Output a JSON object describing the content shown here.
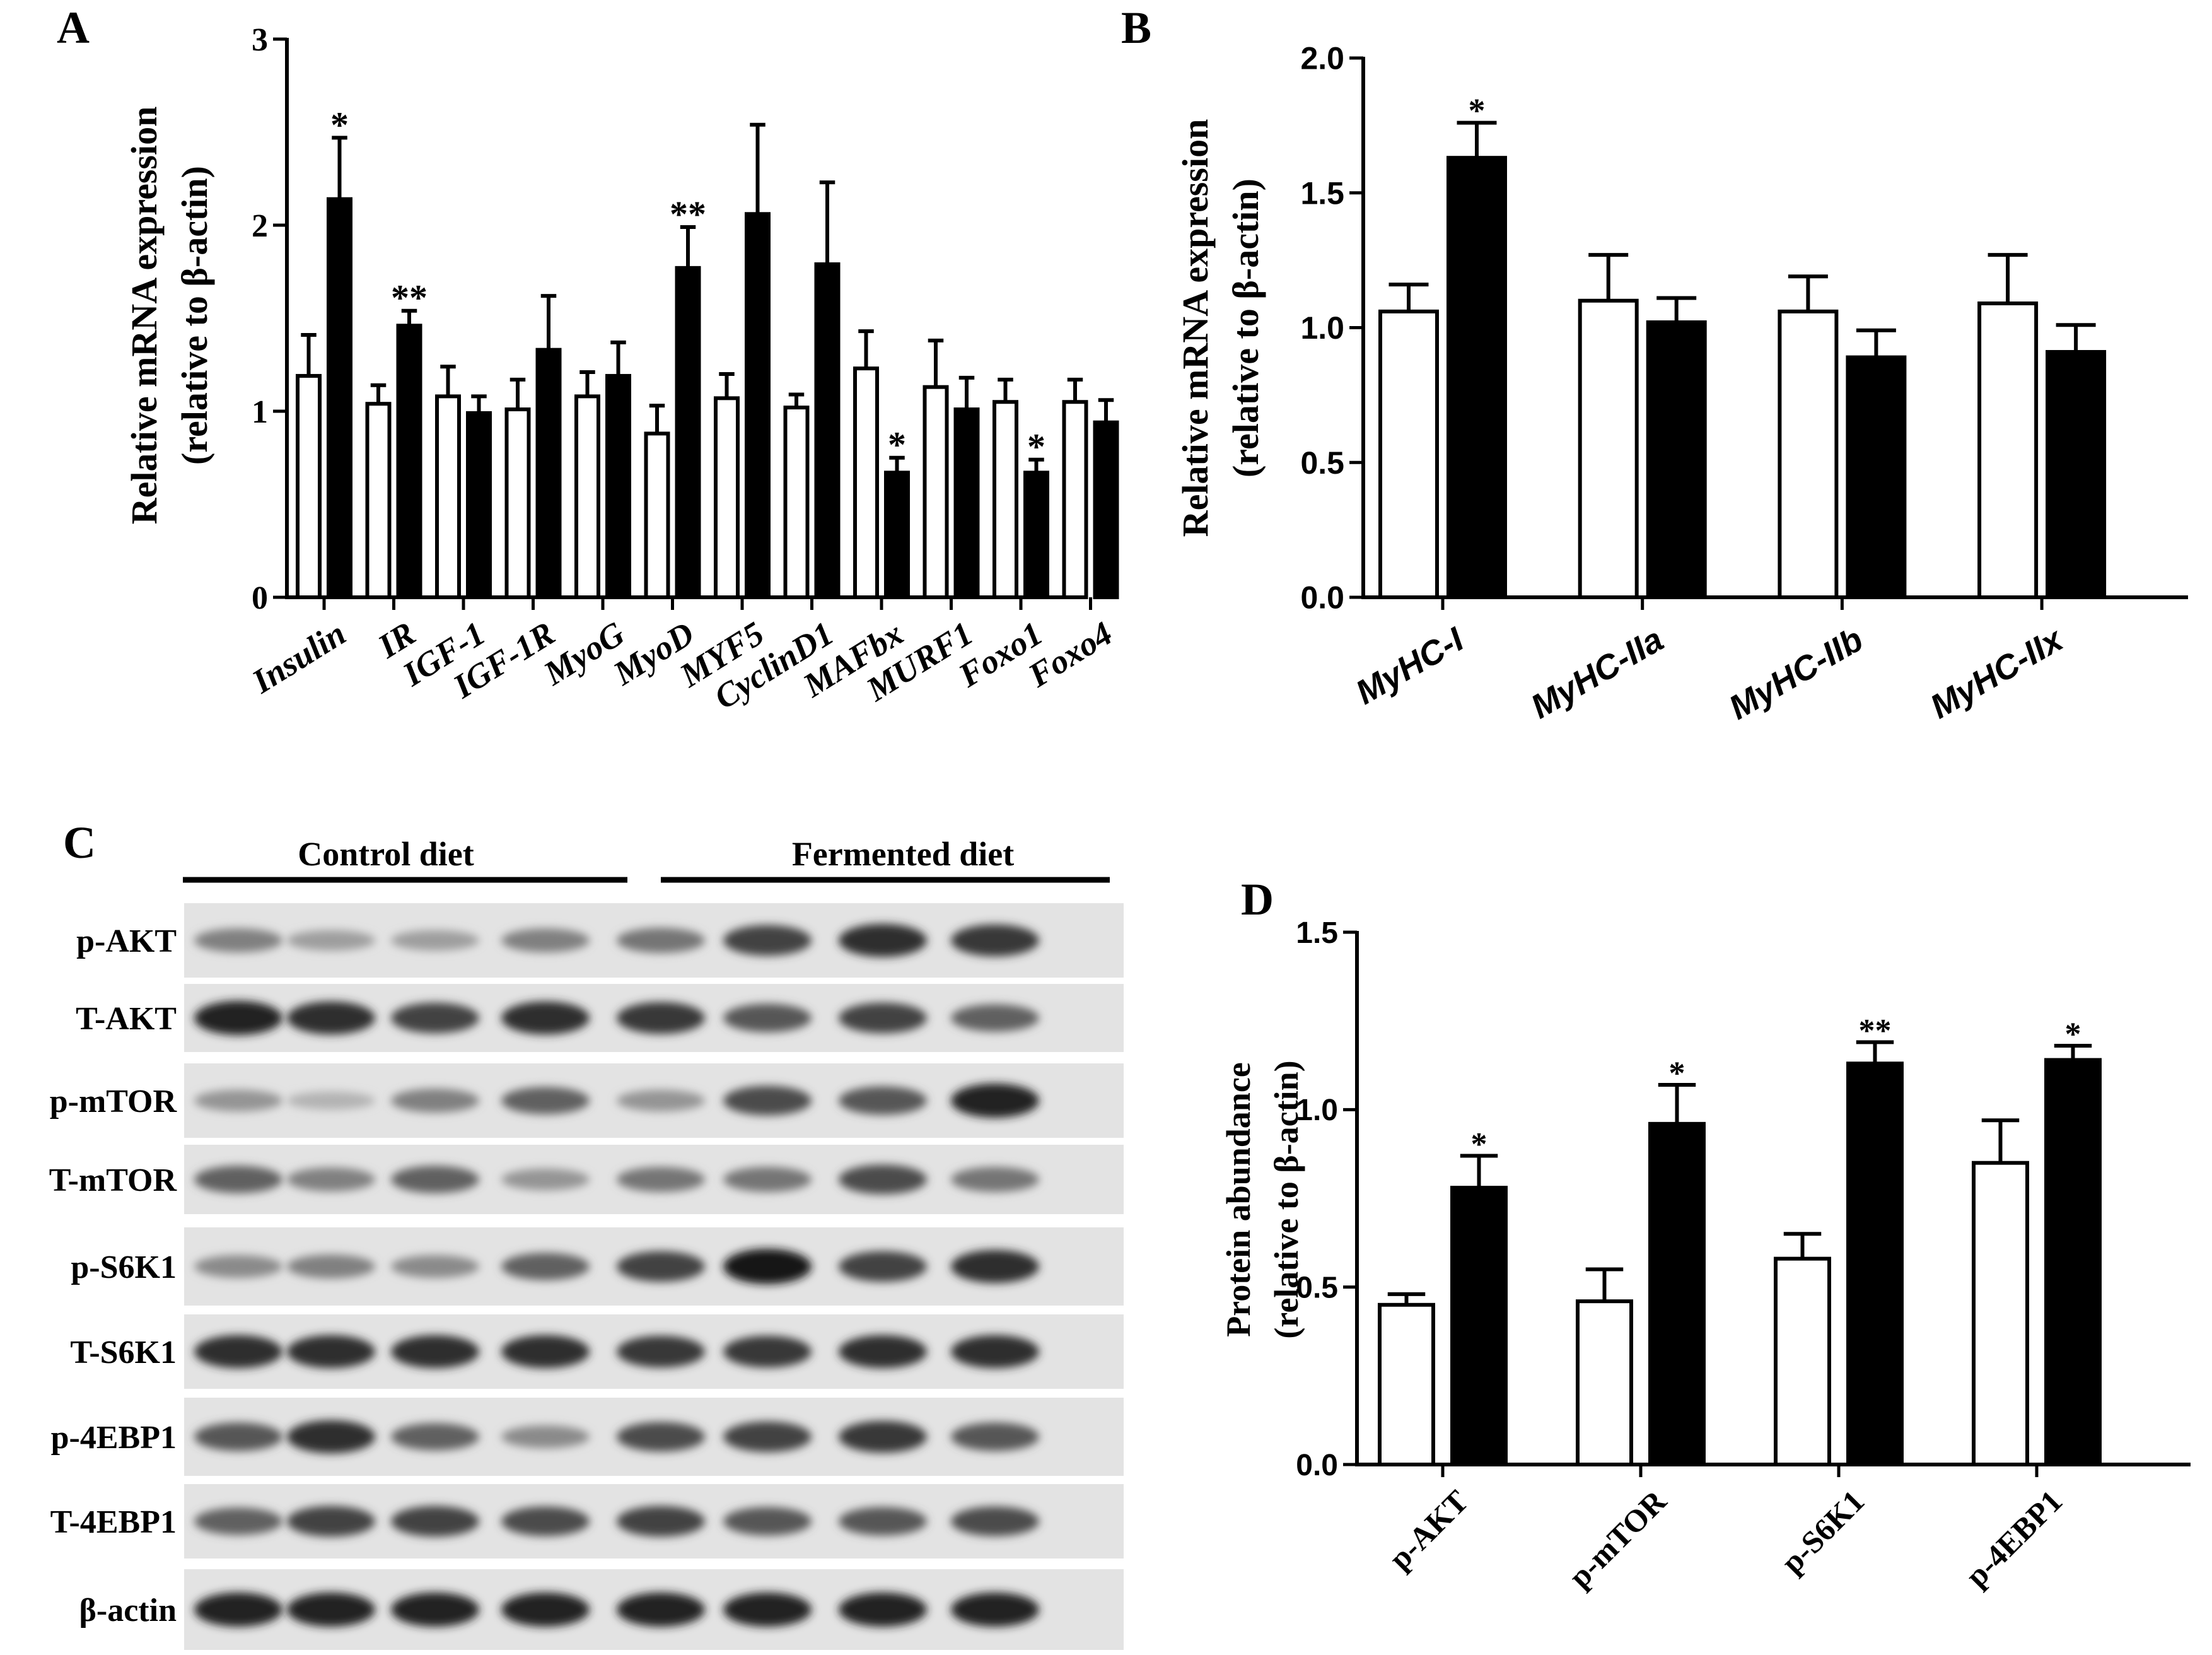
{
  "panels": {
    "A": {
      "letter": "A",
      "ylabel_line1": "Relative mRNA expression",
      "ylabel_line2": "(relative to β-actin)"
    },
    "B": {
      "letter": "B",
      "ylabel_line1": "Relative mRNA expression",
      "ylabel_line2": "(relative to β-actin)"
    },
    "C": {
      "letter": "C",
      "group_labels": [
        "Control diet",
        "Fermented diet"
      ],
      "row_labels": [
        "p-AKT",
        "T-AKT",
        "p-mTOR",
        "T-mTOR",
        "p-S6K1",
        "T-S6K1",
        "p-4EBP1",
        "T-4EBP1",
        "β-actin"
      ],
      "band_intensity": [
        [
          0.5,
          0.35,
          0.35,
          0.5,
          0.55,
          0.8,
          0.9,
          0.85
        ],
        [
          0.95,
          0.9,
          0.8,
          0.9,
          0.85,
          0.7,
          0.8,
          0.65
        ],
        [
          0.4,
          0.25,
          0.5,
          0.65,
          0.4,
          0.75,
          0.7,
          0.95
        ],
        [
          0.65,
          0.5,
          0.65,
          0.4,
          0.55,
          0.55,
          0.75,
          0.55
        ],
        [
          0.45,
          0.5,
          0.45,
          0.65,
          0.8,
          1.0,
          0.8,
          0.9
        ],
        [
          0.9,
          0.9,
          0.9,
          0.9,
          0.85,
          0.85,
          0.9,
          0.9
        ],
        [
          0.7,
          0.9,
          0.65,
          0.45,
          0.75,
          0.8,
          0.85,
          0.7
        ],
        [
          0.65,
          0.8,
          0.8,
          0.75,
          0.8,
          0.7,
          0.7,
          0.75
        ],
        [
          0.95,
          0.95,
          0.95,
          0.95,
          0.95,
          0.95,
          0.95,
          0.95
        ]
      ]
    },
    "D": {
      "letter": "D",
      "ylabel_line1": "Protein abundance",
      "ylabel_line2": "(relative to β-actin)"
    }
  },
  "series_colors": {
    "control": "#ffffff",
    "fermented": "#000000",
    "stroke": "#000000"
  },
  "chart_data": [
    {
      "panel": "A",
      "type": "bar",
      "ylim": [
        0,
        3
      ],
      "yticks": [
        "0",
        "1",
        "2",
        "3"
      ],
      "ytick_values": [
        0,
        1,
        2,
        3
      ],
      "categories": [
        "Insulin",
        "IR",
        "IGF-1",
        "IGF-1R",
        "MyoG",
        "MyoD",
        "MYF5",
        "CyclinD1",
        "MAFbx",
        "MURF1",
        "Foxo1",
        "Foxo4"
      ],
      "series": [
        {
          "values": [
            1.19,
            1.04,
            1.08,
            1.01,
            1.08,
            0.88,
            1.07,
            1.02,
            1.23,
            1.13,
            1.05,
            1.05
          ],
          "errors": [
            0.22,
            0.1,
            0.16,
            0.16,
            0.13,
            0.15,
            0.13,
            0.07,
            0.2,
            0.25,
            0.12,
            0.12
          ]
        },
        {
          "values": [
            2.14,
            1.46,
            0.99,
            1.33,
            1.19,
            1.77,
            2.06,
            1.79,
            0.67,
            1.01,
            0.67,
            0.94
          ],
          "errors": [
            0.33,
            0.08,
            0.09,
            0.29,
            0.18,
            0.22,
            0.48,
            0.44,
            0.08,
            0.17,
            0.07,
            0.12
          ]
        }
      ],
      "annotations": [
        "*",
        "**",
        "",
        "",
        "",
        "**",
        "",
        "",
        "*",
        "",
        "*",
        ""
      ]
    },
    {
      "panel": "B",
      "type": "bar",
      "ylim": [
        0,
        2.0
      ],
      "yticks": [
        "0.0",
        "0.5",
        "1.0",
        "1.5",
        "2.0"
      ],
      "ytick_values": [
        0,
        0.5,
        1.0,
        1.5,
        2.0
      ],
      "categories": [
        "MyHC-I",
        "MyHC-IIa",
        "MyHC-IIb",
        "MyHC-IIx"
      ],
      "series": [
        {
          "values": [
            1.06,
            1.1,
            1.06,
            1.09
          ],
          "errors": [
            0.1,
            0.17,
            0.13,
            0.18
          ]
        },
        {
          "values": [
            1.63,
            1.02,
            0.89,
            0.91
          ],
          "errors": [
            0.13,
            0.09,
            0.1,
            0.1
          ]
        }
      ],
      "annotations": [
        "*",
        "",
        "",
        ""
      ]
    },
    {
      "panel": "D",
      "type": "bar",
      "ylim": [
        0,
        1.5
      ],
      "yticks": [
        "0.0",
        "0.5",
        "1.0",
        "1.5"
      ],
      "ytick_values": [
        0,
        0.5,
        1.0,
        1.5
      ],
      "categories": [
        "p-AKT",
        "p-mTOR",
        "p-S6K1",
        "p-4EBP1"
      ],
      "series": [
        {
          "values": [
            0.45,
            0.46,
            0.58,
            0.85
          ],
          "errors": [
            0.03,
            0.09,
            0.07,
            0.12
          ]
        },
        {
          "values": [
            0.78,
            0.96,
            1.13,
            1.14
          ],
          "errors": [
            0.09,
            0.11,
            0.06,
            0.04
          ]
        }
      ],
      "annotations": [
        "*",
        "*",
        "**",
        "*"
      ]
    }
  ]
}
